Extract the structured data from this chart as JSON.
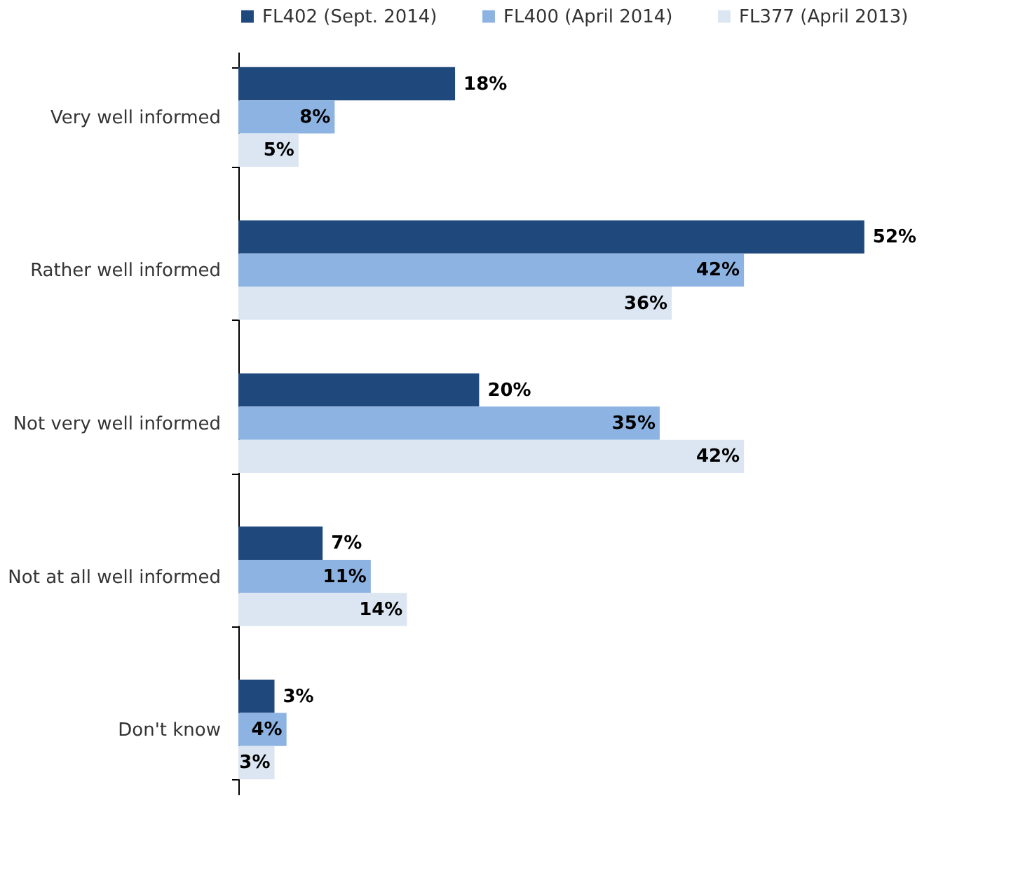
{
  "chart_data": {
    "type": "bar",
    "orientation": "horizontal",
    "categories": [
      "Very well informed",
      "Rather well informed",
      "Not very well informed",
      "Not at all well informed",
      "Don't know"
    ],
    "series": [
      {
        "name": "FL402 (Sept. 2014)",
        "color": "#1f497d",
        "values": [
          18,
          52,
          20,
          7,
          3
        ],
        "value_labels": [
          "18%",
          "52%",
          "20%",
          "7%",
          "3%"
        ]
      },
      {
        "name": "FL400 (April 2014)",
        "color": "#8db3e2",
        "values": [
          8,
          42,
          35,
          11,
          4
        ],
        "value_labels": [
          "8%",
          "42%",
          "35%",
          "11%",
          "4%"
        ]
      },
      {
        "name": "FL377 (April 2013)",
        "color": "#dce6f2",
        "values": [
          5,
          36,
          42,
          14,
          3
        ],
        "value_labels": [
          "5%",
          "36%",
          "42%",
          "14%",
          "3%"
        ]
      }
    ],
    "legend": "top",
    "tick_labels": "y"
  }
}
